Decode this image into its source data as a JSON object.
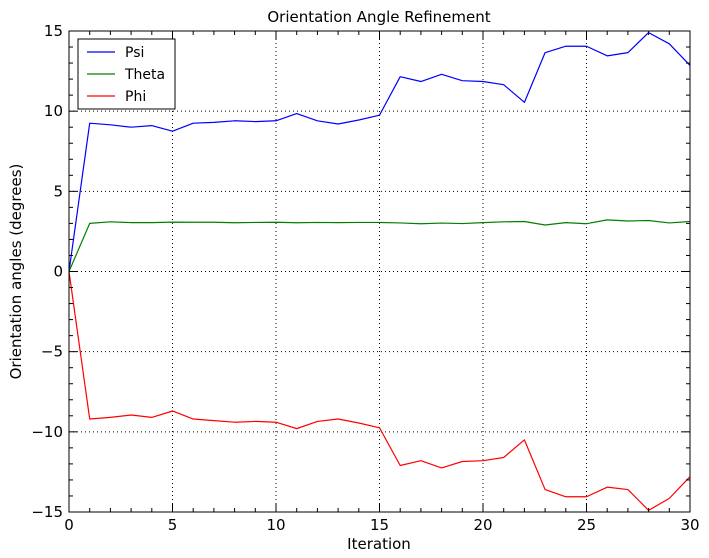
{
  "chart_data": {
    "type": "line",
    "title": "Orientation Angle Refinement",
    "xlabel": "Iteration",
    "ylabel": "Orientation angles (degrees)",
    "xlim": [
      0,
      30
    ],
    "ylim": [
      -15,
      15
    ],
    "xticks": [
      0,
      5,
      10,
      15,
      20,
      25,
      30
    ],
    "yticks": [
      -15,
      -10,
      -5,
      0,
      5,
      10,
      15
    ],
    "xtick_labels": [
      "0",
      "5",
      "10",
      "15",
      "20",
      "25",
      "30"
    ],
    "ytick_labels": [
      "−15",
      "−10",
      "−5",
      "0",
      "5",
      "10",
      "15"
    ],
    "grid": true,
    "legend_position": "top-left",
    "x": [
      0,
      1,
      2,
      3,
      4,
      5,
      6,
      7,
      8,
      9,
      10,
      11,
      12,
      13,
      14,
      15,
      16,
      17,
      18,
      19,
      20,
      21,
      22,
      23,
      24,
      25,
      26,
      27,
      28,
      29,
      30
    ],
    "series": [
      {
        "name": "Psi",
        "color": "#0000ff",
        "values": [
          0.0,
          9.25,
          9.15,
          9.0,
          9.1,
          8.75,
          9.25,
          9.3,
          9.4,
          9.35,
          9.4,
          9.85,
          9.4,
          9.2,
          9.45,
          9.75,
          12.15,
          11.85,
          12.3,
          11.9,
          11.85,
          11.65,
          10.55,
          13.65,
          14.05,
          14.05,
          13.45,
          13.65,
          14.9,
          14.2,
          12.85
        ]
      },
      {
        "name": "Theta",
        "color": "#008000",
        "values": [
          0.0,
          3.0,
          3.1,
          3.05,
          3.05,
          3.08,
          3.07,
          3.07,
          3.04,
          3.06,
          3.07,
          3.04,
          3.06,
          3.05,
          3.06,
          3.06,
          3.03,
          2.98,
          3.02,
          2.99,
          3.05,
          3.1,
          3.12,
          2.9,
          3.05,
          2.98,
          3.22,
          3.15,
          3.18,
          3.03,
          3.12
        ]
      },
      {
        "name": "Phi",
        "color": "#ff0000",
        "values": [
          0.0,
          -9.2,
          -9.1,
          -8.95,
          -9.1,
          -8.7,
          -9.2,
          -9.3,
          -9.4,
          -9.35,
          -9.4,
          -9.8,
          -9.35,
          -9.2,
          -9.45,
          -9.75,
          -12.1,
          -11.8,
          -12.25,
          -11.85,
          -11.8,
          -11.6,
          -10.5,
          -13.6,
          -14.05,
          -14.05,
          -13.45,
          -13.6,
          -14.9,
          -14.15,
          -12.8
        ]
      }
    ]
  }
}
